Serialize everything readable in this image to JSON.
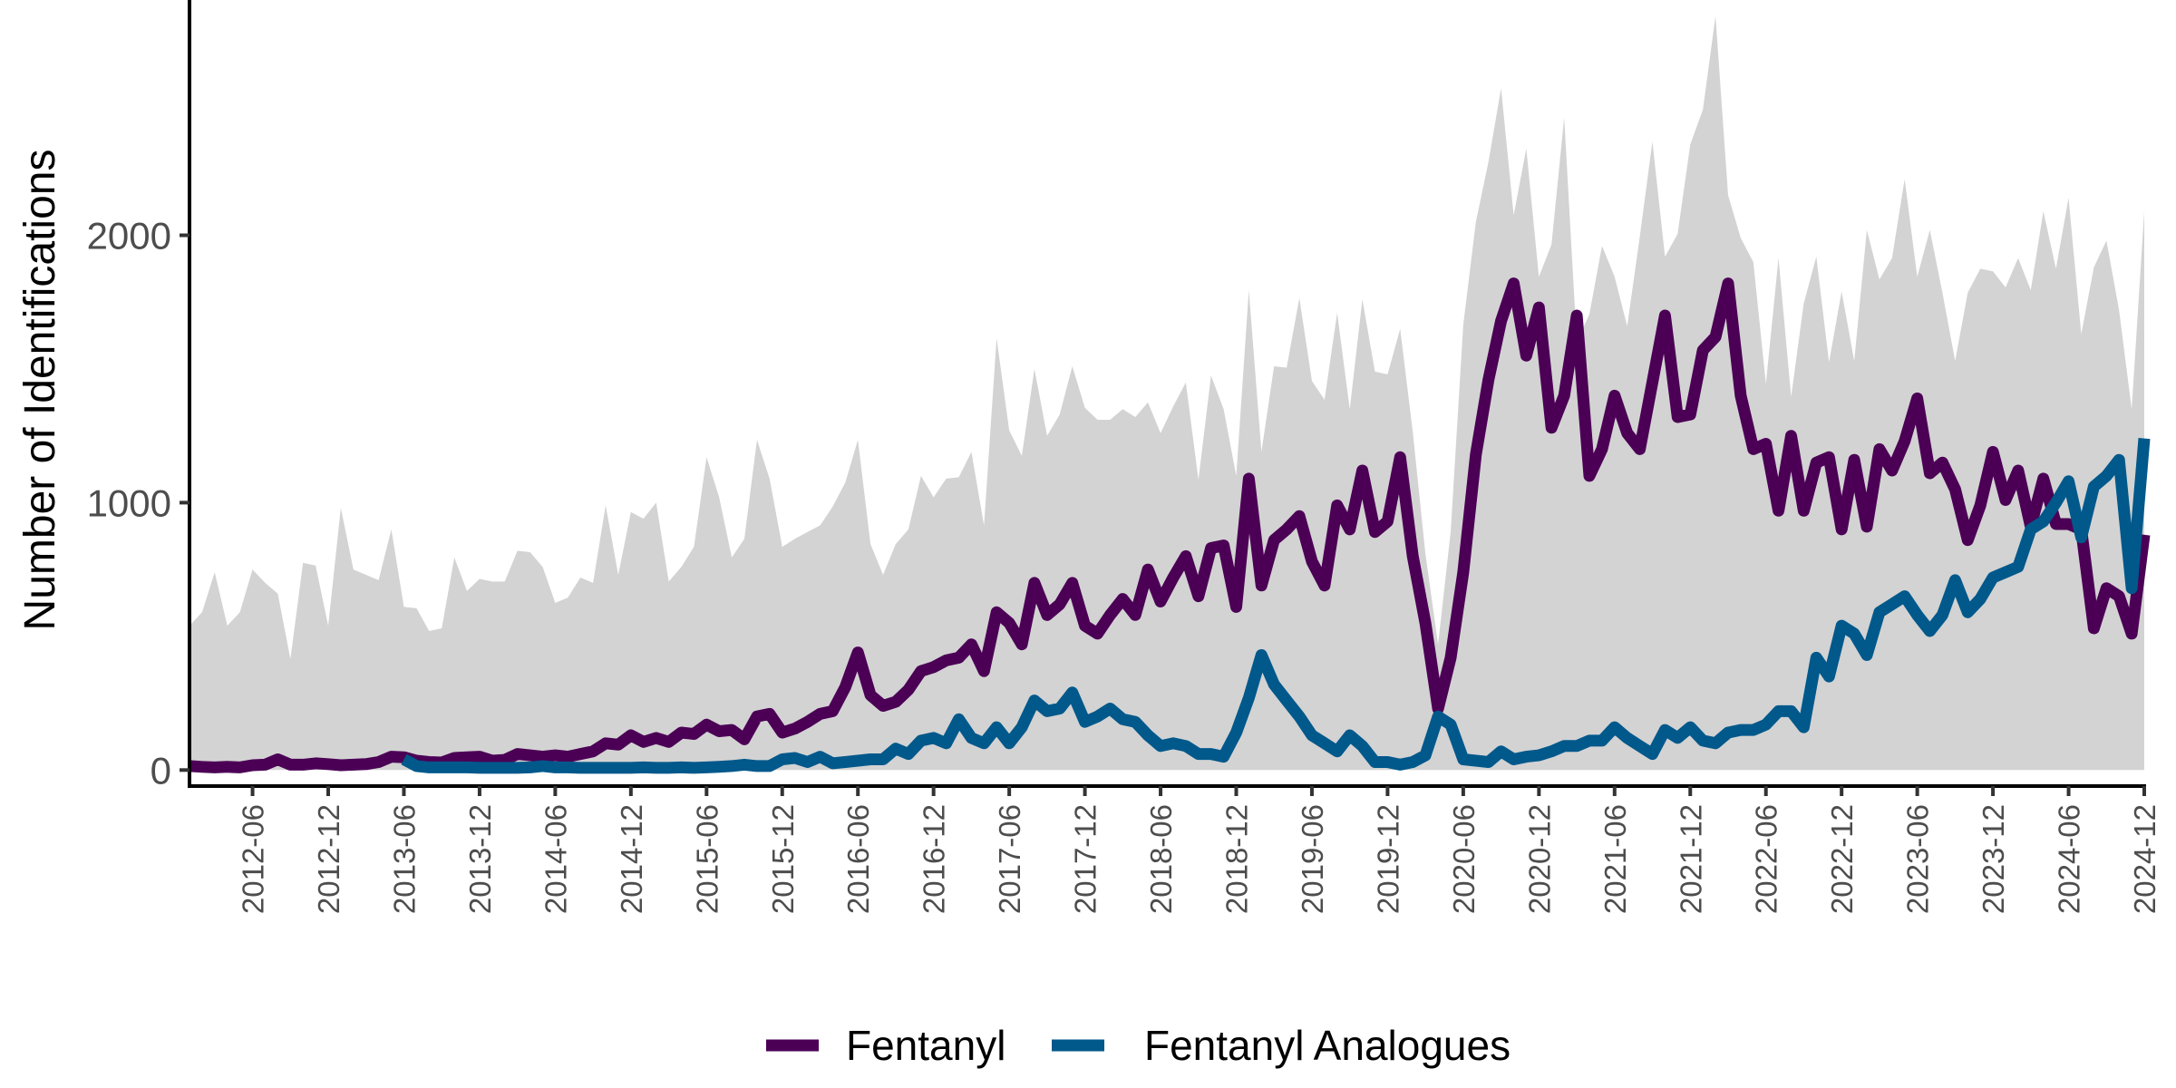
{
  "chart_data": {
    "type": "area",
    "title": "",
    "xlabel": "",
    "ylabel": "Number of Identifications",
    "x_range": [
      "2012-01",
      "2024-12"
    ],
    "x_frequency": "monthly",
    "ylim": [
      -60,
      2880
    ],
    "yticks": [
      0,
      1000,
      2000
    ],
    "xticks": [
      "2012-06",
      "2012-12",
      "2013-06",
      "2013-12",
      "2014-06",
      "2014-12",
      "2015-06",
      "2015-12",
      "2016-06",
      "2016-12",
      "2017-06",
      "2017-12",
      "2018-06",
      "2018-12",
      "2019-06",
      "2019-12",
      "2020-06",
      "2020-12",
      "2021-06",
      "2021-12",
      "2022-06",
      "2022-12",
      "2023-06",
      "2023-12",
      "2024-06",
      "2024-12"
    ],
    "grid": false,
    "legend_position": "bottom",
    "series": [
      {
        "type": "area",
        "color": "#d3d3d3",
        "start": "2012-01",
        "values": [
          540,
          590,
          740,
          540,
          590,
          750,
          700,
          660,
          415,
          775,
          765,
          540,
          980,
          750,
          730,
          710,
          900,
          610,
          605,
          520,
          530,
          795,
          670,
          715,
          705,
          705,
          820,
          815,
          760,
          625,
          645,
          720,
          700,
          990,
          730,
          965,
          940,
          1000,
          705,
          760,
          835,
          1170,
          1020,
          795,
          865,
          1235,
          1090,
          835,
          865,
          890,
          915,
          985,
          1075,
          1235,
          845,
          730,
          845,
          900,
          1100,
          1020,
          1090,
          1095,
          1190,
          915,
          1615,
          1270,
          1175,
          1500,
          1250,
          1330,
          1510,
          1355,
          1310,
          1310,
          1350,
          1320,
          1375,
          1260,
          1360,
          1450,
          1085,
          1475,
          1350,
          1100,
          1795,
          1190,
          1510,
          1505,
          1765,
          1455,
          1385,
          1710,
          1350,
          1760,
          1490,
          1480,
          1650,
          1265,
          810,
          470,
          890,
          1665,
          2050,
          2275,
          2550,
          2075,
          2325,
          1845,
          1965,
          2440,
          1600,
          1705,
          1960,
          1845,
          1660,
          1995,
          2350,
          1920,
          2005,
          2340,
          2470,
          2820,
          2150,
          1990,
          1900,
          1445,
          1915,
          1395,
          1745,
          1920,
          1525,
          1790,
          1530,
          2020,
          1835,
          1915,
          2210,
          1845,
          2020,
          1785,
          1530,
          1785,
          1875,
          1865,
          1805,
          1915,
          1795,
          2090,
          1875,
          2140,
          1630,
          1880,
          1980,
          1720,
          1350,
          2090
        ]
      },
      {
        "name": "Fentanyl",
        "type": "line",
        "color": "#4b0055",
        "start": "2012-01",
        "values": [
          15,
          12,
          10,
          12,
          10,
          18,
          20,
          40,
          20,
          20,
          25,
          22,
          18,
          20,
          22,
          30,
          50,
          48,
          35,
          30,
          28,
          45,
          48,
          50,
          35,
          38,
          60,
          55,
          50,
          55,
          50,
          60,
          70,
          100,
          95,
          130,
          105,
          120,
          105,
          140,
          135,
          170,
          145,
          150,
          115,
          200,
          210,
          140,
          155,
          180,
          210,
          220,
          310,
          440,
          280,
          240,
          255,
          300,
          370,
          385,
          410,
          420,
          470,
          370,
          590,
          550,
          470,
          700,
          580,
          620,
          700,
          540,
          510,
          580,
          640,
          580,
          750,
          630,
          720,
          800,
          650,
          830,
          840,
          610,
          1090,
          690,
          860,
          900,
          950,
          780,
          690,
          990,
          900,
          1120,
          890,
          930,
          1170,
          800,
          550,
          230,
          420,
          740,
          1180,
          1460,
          1680,
          1820,
          1550,
          1730,
          1280,
          1400,
          1700,
          1100,
          1200,
          1400,
          1260,
          1200,
          1450,
          1700,
          1320,
          1330,
          1570,
          1620,
          1820,
          1400,
          1200,
          1220,
          970,
          1250,
          970,
          1150,
          1170,
          900,
          1160,
          910,
          1200,
          1120,
          1230,
          1390,
          1110,
          1150,
          1050,
          860,
          990,
          1190,
          1010,
          1120,
          910,
          1090,
          920,
          920,
          900,
          530,
          680,
          650,
          510,
          880
        ]
      },
      {
        "name": "Fentanyl Analogues",
        "type": "line",
        "color": "#00588b",
        "start": "2013-06",
        "values": [
          40,
          15,
          10,
          10,
          10,
          10,
          8,
          8,
          8,
          8,
          10,
          15,
          10,
          10,
          8,
          8,
          8,
          8,
          8,
          10,
          8,
          8,
          10,
          8,
          10,
          12,
          15,
          20,
          15,
          15,
          40,
          45,
          30,
          50,
          25,
          30,
          35,
          40,
          40,
          80,
          60,
          110,
          120,
          100,
          190,
          120,
          100,
          160,
          100,
          160,
          260,
          220,
          230,
          290,
          180,
          200,
          230,
          190,
          180,
          130,
          90,
          100,
          90,
          60,
          60,
          50,
          140,
          270,
          430,
          320,
          260,
          200,
          130,
          100,
          70,
          130,
          90,
          30,
          30,
          20,
          30,
          55,
          200,
          170,
          40,
          35,
          30,
          70,
          40,
          50,
          55,
          70,
          90,
          90,
          110,
          110,
          160,
          120,
          90,
          60,
          150,
          120,
          160,
          110,
          100,
          140,
          150,
          150,
          170,
          220,
          220,
          160,
          420,
          350,
          540,
          510,
          430,
          590,
          620,
          650,
          580,
          520,
          580,
          710,
          590,
          640,
          720,
          740,
          760,
          900,
          930,
          1000,
          1080,
          870,
          1060,
          1100,
          1160,
          680,
          1240
        ]
      }
    ]
  }
}
